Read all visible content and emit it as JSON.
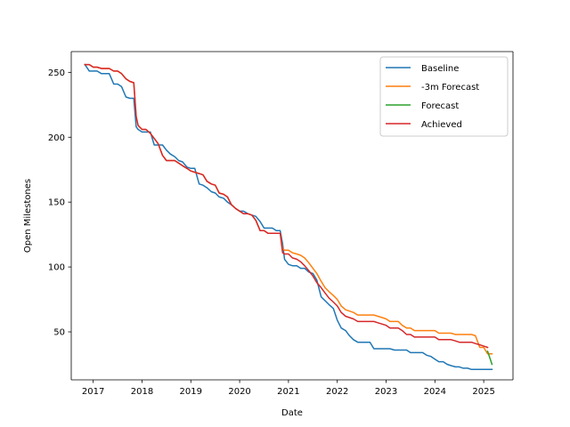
{
  "chart_data": {
    "type": "line",
    "title": "",
    "xlabel": "Date",
    "ylabel": "Open Milestones",
    "xlim": [
      2016.55,
      2025.6
    ],
    "ylim": [
      13,
      266
    ],
    "x_ticks": [
      2017,
      2018,
      2019,
      2020,
      2021,
      2022,
      2023,
      2024,
      2025
    ],
    "y_ticks": [
      50,
      100,
      150,
      200,
      250
    ],
    "grid": false,
    "legend_position": "upper right",
    "series": [
      {
        "name": "Baseline",
        "color": "#1f77b4",
        "x": [
          2016.83,
          2016.92,
          2017.0,
          2017.08,
          2017.17,
          2017.25,
          2017.33,
          2017.42,
          2017.5,
          2017.58,
          2017.67,
          2017.75,
          2017.83,
          2017.88,
          2017.92,
          2018.0,
          2018.08,
          2018.17,
          2018.25,
          2018.33,
          2018.42,
          2018.5,
          2018.58,
          2018.67,
          2018.75,
          2018.83,
          2018.92,
          2019.0,
          2019.08,
          2019.17,
          2019.25,
          2019.33,
          2019.42,
          2019.5,
          2019.58,
          2019.67,
          2019.75,
          2019.83,
          2019.92,
          2020.0,
          2020.08,
          2020.17,
          2020.25,
          2020.33,
          2020.42,
          2020.5,
          2020.58,
          2020.67,
          2020.75,
          2020.83,
          2020.88,
          2020.92,
          2021.0,
          2021.08,
          2021.17,
          2021.25,
          2021.33,
          2021.42,
          2021.5,
          2021.58,
          2021.67,
          2021.75,
          2021.83,
          2021.92,
          2022.0,
          2022.08,
          2022.17,
          2022.25,
          2022.33,
          2022.42,
          2022.5,
          2022.58,
          2022.67,
          2022.75,
          2022.83,
          2022.92,
          2023.0,
          2023.08,
          2023.17,
          2023.25,
          2023.33,
          2023.42,
          2023.5,
          2023.58,
          2023.67,
          2023.75,
          2023.83,
          2023.92,
          2024.0,
          2024.08,
          2024.17,
          2024.25,
          2024.33,
          2024.42,
          2024.5,
          2024.58,
          2024.67,
          2024.75,
          2024.83,
          2024.92,
          2025.0,
          2025.08,
          2025.17
        ],
        "y": [
          256,
          251,
          251,
          251,
          249,
          249,
          249,
          241,
          241,
          239,
          231,
          230,
          230,
          208,
          206,
          204,
          204,
          204,
          194,
          194,
          194,
          190,
          187,
          185,
          182,
          181,
          177,
          176,
          176,
          164,
          163,
          161,
          158,
          157,
          154,
          153,
          150,
          148,
          145,
          143,
          143,
          141,
          140,
          139,
          135,
          130,
          130,
          130,
          128,
          128,
          118,
          106,
          102,
          101,
          101,
          99,
          99,
          96,
          95,
          90,
          77,
          74,
          71,
          68,
          59,
          53,
          51,
          47,
          44,
          42,
          42,
          42,
          42,
          37,
          37,
          37,
          37,
          37,
          36,
          36,
          36,
          36,
          34,
          34,
          34,
          34,
          32,
          31,
          29,
          27,
          27,
          25,
          24,
          23,
          23,
          22,
          22,
          21,
          21,
          21,
          21,
          21,
          21
        ]
      },
      {
        "name": "-3m Forecast",
        "color": "#ff7f0e",
        "x": [
          2016.83,
          2016.92,
          2017.0,
          2017.08,
          2017.17,
          2017.25,
          2017.33,
          2017.42,
          2017.5,
          2017.58,
          2017.67,
          2017.75,
          2017.83,
          2017.88,
          2017.92,
          2018.0,
          2018.08,
          2018.17,
          2018.25,
          2018.33,
          2018.42,
          2018.5,
          2018.58,
          2018.67,
          2018.75,
          2018.83,
          2018.92,
          2019.0,
          2019.08,
          2019.17,
          2019.25,
          2019.33,
          2019.42,
          2019.5,
          2019.58,
          2019.67,
          2019.75,
          2019.83,
          2019.92,
          2020.0,
          2020.08,
          2020.17,
          2020.25,
          2020.33,
          2020.42,
          2020.5,
          2020.58,
          2020.67,
          2020.75,
          2020.83,
          2020.88,
          2020.92,
          2021.0,
          2021.08,
          2021.17,
          2021.25,
          2021.33,
          2021.42,
          2021.5,
          2021.58,
          2021.67,
          2021.75,
          2021.83,
          2021.92,
          2022.0,
          2022.08,
          2022.17,
          2022.25,
          2022.33,
          2022.42,
          2022.5,
          2022.58,
          2022.67,
          2022.75,
          2022.83,
          2022.92,
          2023.0,
          2023.08,
          2023.17,
          2023.25,
          2023.33,
          2023.42,
          2023.5,
          2023.58,
          2023.67,
          2023.75,
          2023.83,
          2023.92,
          2024.0,
          2024.08,
          2024.17,
          2024.25,
          2024.33,
          2024.42,
          2024.5,
          2024.58,
          2024.67,
          2024.75,
          2024.83,
          2024.92,
          2025.0,
          2025.08,
          2025.17
        ],
        "y": [
          256,
          256,
          254,
          254,
          253,
          253,
          253,
          251,
          251,
          249,
          245,
          243,
          242,
          216,
          209,
          206,
          206,
          203,
          199,
          195,
          186,
          182,
          182,
          182,
          180,
          178,
          176,
          174,
          173,
          172,
          171,
          166,
          164,
          163,
          157,
          156,
          154,
          148,
          145,
          143,
          141,
          141,
          140,
          136,
          128,
          128,
          126,
          126,
          126,
          126,
          114,
          113,
          113,
          111,
          110,
          109,
          107,
          103,
          99,
          95,
          89,
          84,
          81,
          78,
          75,
          70,
          67,
          66,
          65,
          63,
          63,
          63,
          63,
          63,
          62,
          61,
          60,
          58,
          58,
          58,
          55,
          53,
          53,
          51,
          51,
          51,
          51,
          51,
          51,
          49,
          49,
          49,
          49,
          48,
          48,
          48,
          48,
          48,
          47,
          38,
          38,
          33,
          33
        ]
      },
      {
        "name": "Forecast",
        "color": "#2ca02c",
        "x": [
          2025.08,
          2025.17
        ],
        "y": [
          35,
          25
        ]
      },
      {
        "name": "Achieved",
        "color": "#d62728",
        "x": [
          2016.83,
          2016.92,
          2017.0,
          2017.08,
          2017.17,
          2017.25,
          2017.33,
          2017.42,
          2017.5,
          2017.58,
          2017.67,
          2017.75,
          2017.83,
          2017.88,
          2017.92,
          2018.0,
          2018.08,
          2018.17,
          2018.25,
          2018.33,
          2018.42,
          2018.5,
          2018.58,
          2018.67,
          2018.75,
          2018.83,
          2018.92,
          2019.0,
          2019.08,
          2019.17,
          2019.25,
          2019.33,
          2019.42,
          2019.5,
          2019.58,
          2019.67,
          2019.75,
          2019.83,
          2019.92,
          2020.0,
          2020.08,
          2020.17,
          2020.25,
          2020.33,
          2020.42,
          2020.5,
          2020.58,
          2020.67,
          2020.75,
          2020.83,
          2020.88,
          2020.92,
          2021.0,
          2021.08,
          2021.17,
          2021.25,
          2021.33,
          2021.42,
          2021.5,
          2021.58,
          2021.67,
          2021.75,
          2021.83,
          2021.92,
          2022.0,
          2022.08,
          2022.17,
          2022.25,
          2022.33,
          2022.42,
          2022.5,
          2022.58,
          2022.67,
          2022.75,
          2022.83,
          2022.92,
          2023.0,
          2023.08,
          2023.17,
          2023.25,
          2023.33,
          2023.42,
          2023.5,
          2023.58,
          2023.67,
          2023.75,
          2023.83,
          2023.92,
          2024.0,
          2024.08,
          2024.17,
          2024.25,
          2024.33,
          2024.42,
          2024.5,
          2024.58,
          2024.67,
          2024.75,
          2024.83,
          2024.92,
          2025.0,
          2025.08
        ],
        "y": [
          256,
          256,
          254,
          254,
          253,
          253,
          253,
          251,
          251,
          249,
          245,
          243,
          242,
          216,
          209,
          206,
          206,
          203,
          199,
          195,
          186,
          182,
          182,
          182,
          180,
          178,
          176,
          174,
          173,
          172,
          171,
          166,
          164,
          163,
          157,
          156,
          154,
          148,
          145,
          143,
          141,
          141,
          140,
          136,
          128,
          128,
          126,
          126,
          126,
          126,
          111,
          110,
          110,
          107,
          106,
          104,
          101,
          97,
          93,
          88,
          84,
          80,
          76,
          73,
          70,
          65,
          62,
          61,
          60,
          58,
          58,
          58,
          58,
          58,
          57,
          56,
          55,
          53,
          53,
          53,
          51,
          48,
          48,
          46,
          46,
          46,
          46,
          46,
          46,
          44,
          44,
          44,
          44,
          43,
          42,
          42,
          42,
          42,
          41,
          40,
          39,
          38
        ]
      }
    ]
  }
}
